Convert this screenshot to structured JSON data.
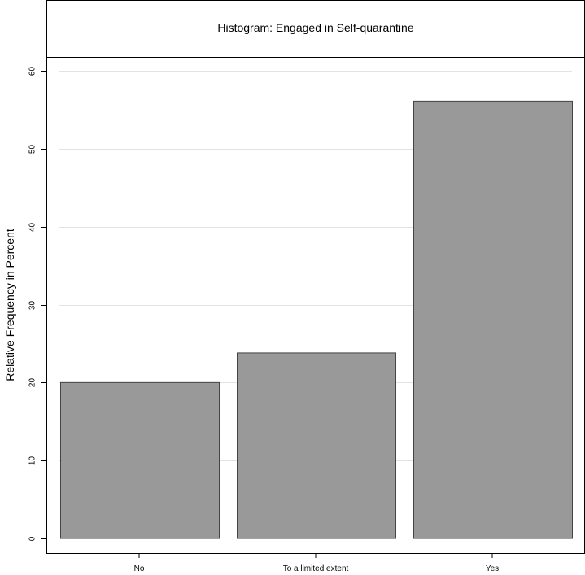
{
  "chart_data": {
    "type": "bar",
    "title": "Histogram: Engaged in Self-quarantine",
    "xlabel": "",
    "ylabel": "Relative Frequency in Percent",
    "categories": [
      "No",
      "To a limited extent",
      "Yes"
    ],
    "values": [
      20.0,
      23.8,
      56.1
    ],
    "ylim": [
      0,
      60
    ],
    "yticks": [
      0,
      10,
      20,
      30,
      40,
      50,
      60
    ],
    "grid": true,
    "bar_color": "#999999",
    "bar_edge_color": "#444444",
    "grid_color": "#e3e3e3"
  }
}
